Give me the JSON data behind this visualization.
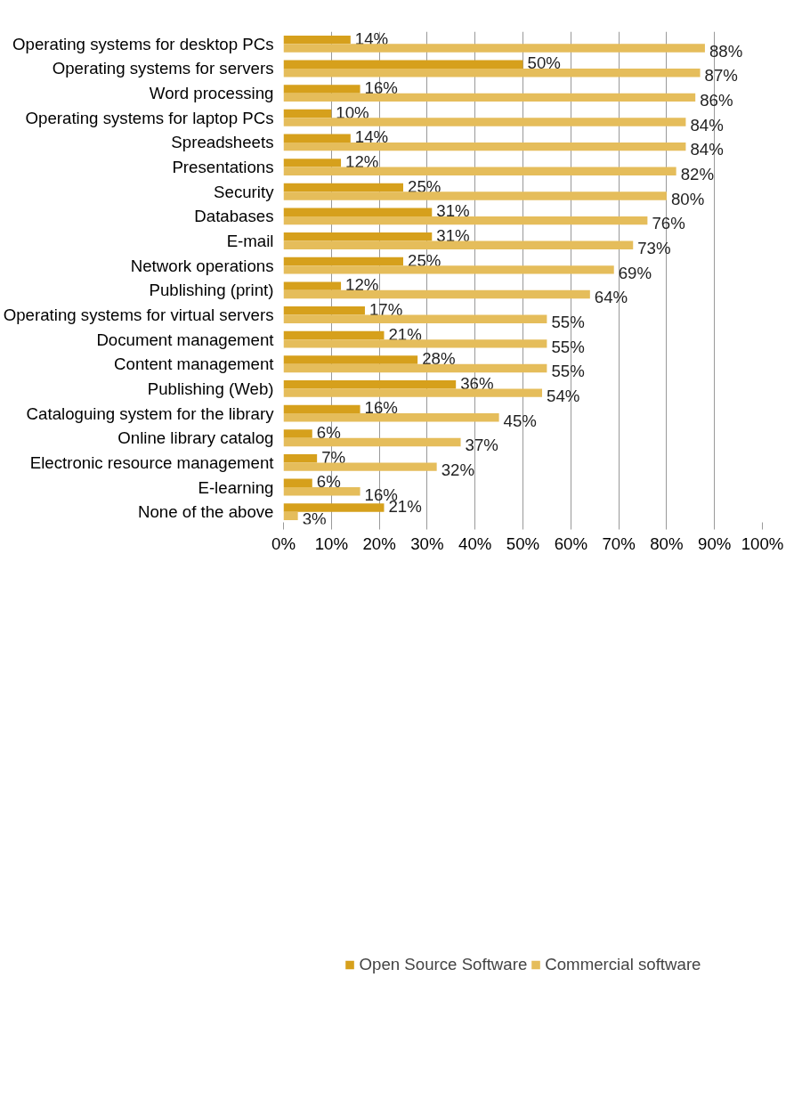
{
  "chart_data": {
    "type": "bar",
    "orientation": "horizontal",
    "categories": [
      "Operating systems for desktop PCs",
      "Operating systems for servers",
      "Word processing",
      "Operating systems for laptop PCs",
      "Spreadsheets",
      "Presentations",
      "Security",
      "Databases",
      "E-mail",
      "Network operations",
      "Publishing (print)",
      "Operating systems for virtual servers",
      "Document management",
      "Content management",
      "Publishing (Web)",
      "Cataloguing system for the library",
      "Online library catalog",
      "Electronic resource management",
      "E-learning",
      "None of the above"
    ],
    "series": [
      {
        "name": "Open Source Software",
        "color": "#d6a01c",
        "values": [
          14,
          50,
          16,
          10,
          14,
          12,
          25,
          31,
          31,
          25,
          12,
          17,
          21,
          28,
          36,
          16,
          6,
          7,
          6,
          21
        ],
        "value_labels": [
          "14%",
          "50%",
          "16%",
          "10%",
          "14%",
          "12%",
          "25%",
          "31%",
          "31%",
          "25%",
          "12%",
          "17%",
          "21%",
          "28%",
          "36%",
          "16%",
          "6%",
          "7%",
          "6%",
          "21%"
        ]
      },
      {
        "name": "Commercial software",
        "color": "#e5bd5b",
        "values": [
          88,
          87,
          86,
          84,
          84,
          82,
          80,
          76,
          73,
          69,
          64,
          55,
          55,
          55,
          54,
          45,
          37,
          32,
          16,
          3
        ],
        "value_labels": [
          "88%",
          "87%",
          "86%",
          "84%",
          "84%",
          "82%",
          "80%",
          "76%",
          "73%",
          "69%",
          "64%",
          "55%",
          "55%",
          "55%",
          "54%",
          "45%",
          "37%",
          "32%",
          "16%",
          "3%"
        ]
      }
    ],
    "xlim": [
      0,
      100
    ],
    "xticks": [
      {
        "value": 0,
        "label": "0%"
      },
      {
        "value": 10,
        "label": "10%"
      },
      {
        "value": 20,
        "label": "20%"
      },
      {
        "value": 30,
        "label": "30%"
      },
      {
        "value": 40,
        "label": "40%"
      },
      {
        "value": 50,
        "label": "50%"
      },
      {
        "value": 60,
        "label": "60%"
      },
      {
        "value": 70,
        "label": "70%"
      },
      {
        "value": 80,
        "label": "80%"
      },
      {
        "value": 90,
        "label": "90%"
      },
      {
        "value": 100,
        "label": "100%"
      }
    ],
    "grid": "x",
    "legend": "bottom"
  }
}
